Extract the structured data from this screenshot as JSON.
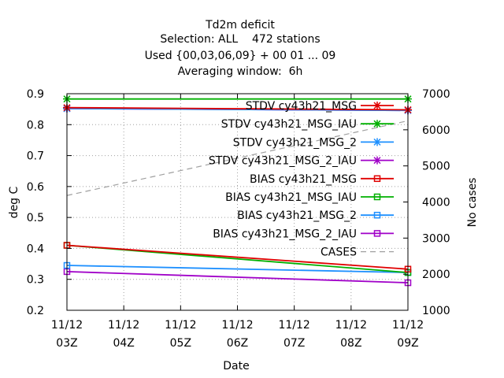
{
  "chart_data": {
    "type": "line",
    "title_lines": [
      "Td2m deficit",
      "Selection: ALL    472 stations",
      "Used {00,03,06,09} + 00 01 ... 09",
      "Averaging window:  6h"
    ],
    "xlabel": "Date",
    "ylabel": "deg C",
    "y2label": "No cases",
    "x_ticks": [
      {
        "line1": "11/12",
        "line2": "03Z"
      },
      {
        "line1": "11/12",
        "line2": "04Z"
      },
      {
        "line1": "11/12",
        "line2": "05Z"
      },
      {
        "line1": "11/12",
        "line2": "06Z"
      },
      {
        "line1": "11/12",
        "line2": "07Z"
      },
      {
        "line1": "11/12",
        "line2": "08Z"
      },
      {
        "line1": "11/12",
        "line2": "09Z"
      }
    ],
    "x": [
      "11/12 03Z",
      "11/12 09Z"
    ],
    "ylim": [
      0.2,
      0.9
    ],
    "y_ticks": [
      "0.2",
      "0.3",
      "0.4",
      "0.5",
      "0.6",
      "0.7",
      "0.8",
      "0.9"
    ],
    "y2lim": [
      1000,
      7000
    ],
    "y2_ticks": [
      "1000",
      "2000",
      "3000",
      "4000",
      "5000",
      "6000",
      "7000"
    ],
    "grid": true,
    "legend_position": "top-right",
    "series": [
      {
        "name": "STDV cy43h21_MSG",
        "color": "#e00000",
        "marker": "x",
        "axis": "y",
        "values": [
          0.855,
          0.848
        ]
      },
      {
        "name": "STDV cy43h21_MSG_IAU",
        "color": "#00b000",
        "marker": "x",
        "axis": "y",
        "values": [
          0.883,
          0.883
        ]
      },
      {
        "name": "STDV cy43h21_MSG_2",
        "color": "#1e90ff",
        "marker": "x",
        "axis": "y",
        "values": [
          0.852,
          0.846
        ]
      },
      {
        "name": "STDV cy43h21_MSG_2_IAU",
        "color": "#a000c8",
        "marker": "x",
        "axis": "y",
        "values": [
          0.852,
          0.846
        ]
      },
      {
        "name": "BIAS cy43h21_MSG",
        "color": "#e00000",
        "marker": "square",
        "axis": "y",
        "values": [
          0.41,
          0.333
        ]
      },
      {
        "name": "BIAS cy43h21_MSG_IAU",
        "color": "#00b000",
        "marker": "square",
        "axis": "y",
        "values": [
          0.41,
          0.322
        ]
      },
      {
        "name": "BIAS cy43h21_MSG_2",
        "color": "#1e90ff",
        "marker": "square",
        "axis": "y",
        "values": [
          0.345,
          0.322
        ]
      },
      {
        "name": "BIAS cy43h21_MSG_2_IAU",
        "color": "#a000c8",
        "marker": "square",
        "axis": "y",
        "values": [
          0.325,
          0.289
        ]
      },
      {
        "name": "CASES",
        "color": "#a0a0a0",
        "marker": "none",
        "dashed": true,
        "axis": "y2",
        "values": [
          4180,
          6250
        ]
      }
    ]
  }
}
